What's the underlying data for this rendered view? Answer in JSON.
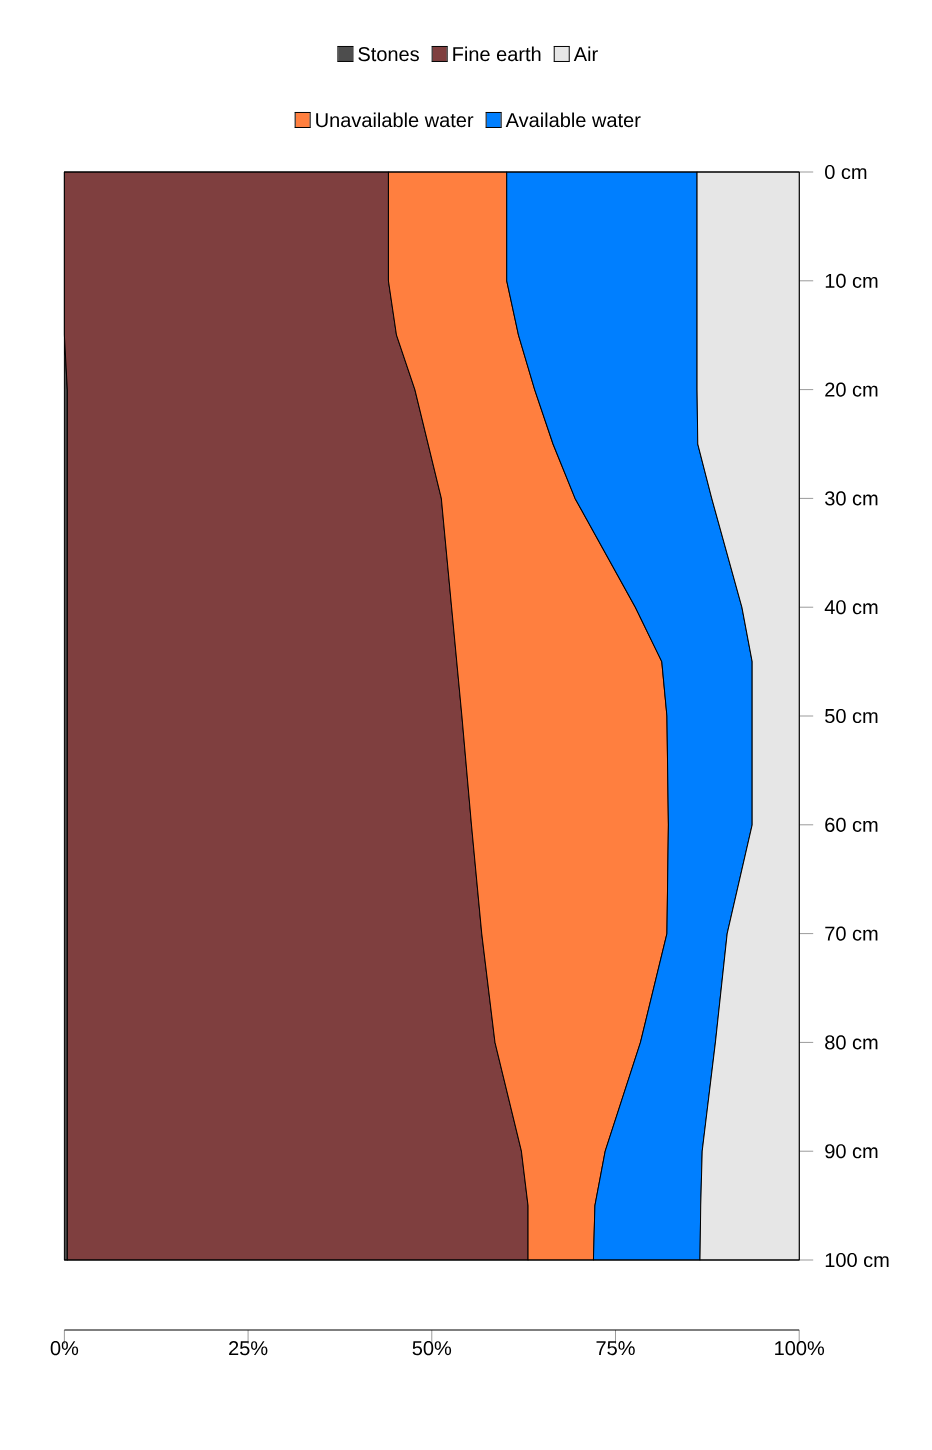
{
  "chart_data": {
    "type": "area",
    "orientation": "horizontal",
    "stacked": true,
    "legend": "top",
    "x": [
      0,
      10,
      15,
      20,
      25,
      30,
      40,
      45,
      50,
      60,
      70,
      80,
      90,
      95,
      100
    ],
    "xlim": [
      0,
      100
    ],
    "xticks": [
      {
        "value": 0,
        "label": "0%"
      },
      {
        "value": 25,
        "label": "25%"
      },
      {
        "value": 50,
        "label": "50%"
      },
      {
        "value": 75,
        "label": "75%"
      },
      {
        "value": 100,
        "label": "100%"
      }
    ],
    "ylim": [
      100,
      0
    ],
    "yticks": [
      {
        "value": 0,
        "label": "0 cm"
      },
      {
        "value": 10,
        "label": "10 cm"
      },
      {
        "value": 20,
        "label": "20 cm"
      },
      {
        "value": 30,
        "label": "30 cm"
      },
      {
        "value": 40,
        "label": "40 cm"
      },
      {
        "value": 50,
        "label": "50 cm"
      },
      {
        "value": 60,
        "label": "60 cm"
      },
      {
        "value": 70,
        "label": "70 cm"
      },
      {
        "value": 80,
        "label": "80 cm"
      },
      {
        "value": 90,
        "label": "90 cm"
      },
      {
        "value": 100,
        "label": "100 cm"
      }
    ],
    "series": [
      {
        "name": "Stones",
        "color": "#4d4d4d",
        "values": [
          0,
          0,
          0,
          0.4,
          0.4,
          0.4,
          0.4,
          0.4,
          0.4,
          0.4,
          0.4,
          0.4,
          0.4,
          0.4,
          0.4
        ]
      },
      {
        "name": "Fine earth",
        "color": "#7f3f3f",
        "values": [
          44.1,
          44.1,
          45.2,
          47.3,
          49.1,
          50.9,
          52.3,
          53.0,
          53.7,
          55.0,
          56.4,
          58.2,
          61.8,
          62.7,
          62.7
        ]
      },
      {
        "name": "Unavailable water",
        "color": "#ff7f3f",
        "values": [
          16.1,
          16.1,
          16.6,
          16.3,
          17.0,
          18.2,
          25.0,
          27.9,
          27.9,
          26.8,
          25.2,
          19.8,
          11.4,
          9.1,
          8.9
        ]
      },
      {
        "name": "Available water",
        "color": "#007fff",
        "values": [
          25.9,
          25.9,
          24.3,
          22.1,
          19.7,
          18.6,
          14.5,
          12.3,
          11.6,
          11.4,
          8.2,
          10.2,
          13.2,
          14.4,
          14.5
        ]
      },
      {
        "name": "Air",
        "color": "#e6e6e6",
        "values": [
          13.9,
          13.9,
          13.9,
          13.9,
          13.8,
          11.9,
          7.8,
          6.4,
          6.4,
          6.4,
          9.8,
          11.4,
          13.2,
          13.4,
          13.5
        ]
      }
    ]
  }
}
